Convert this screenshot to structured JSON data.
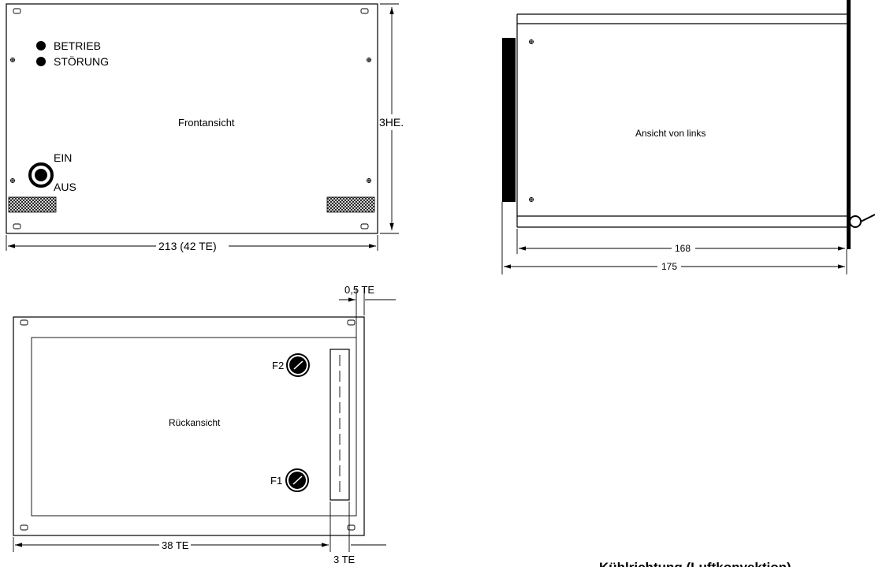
{
  "front_view": {
    "title": "Frontansicht",
    "led_operation": "BETRIEB",
    "led_fault": "STÖRUNG",
    "switch_on": "EIN",
    "switch_off": "AUS",
    "height_label": "3HE.",
    "width_label": "213 (42 TE)"
  },
  "side_view": {
    "title": "Ansicht von links",
    "depth_inner": "168",
    "depth_outer": "175"
  },
  "rear_view": {
    "title": "Rückansicht",
    "fuse_1": "F1",
    "fuse_2": "F2",
    "offset_label": "0,5 TE",
    "width_label": "38 TE",
    "connector_label": "3 TE"
  },
  "cooling_label": "Kühlrichtung (Luftkonvektion)"
}
